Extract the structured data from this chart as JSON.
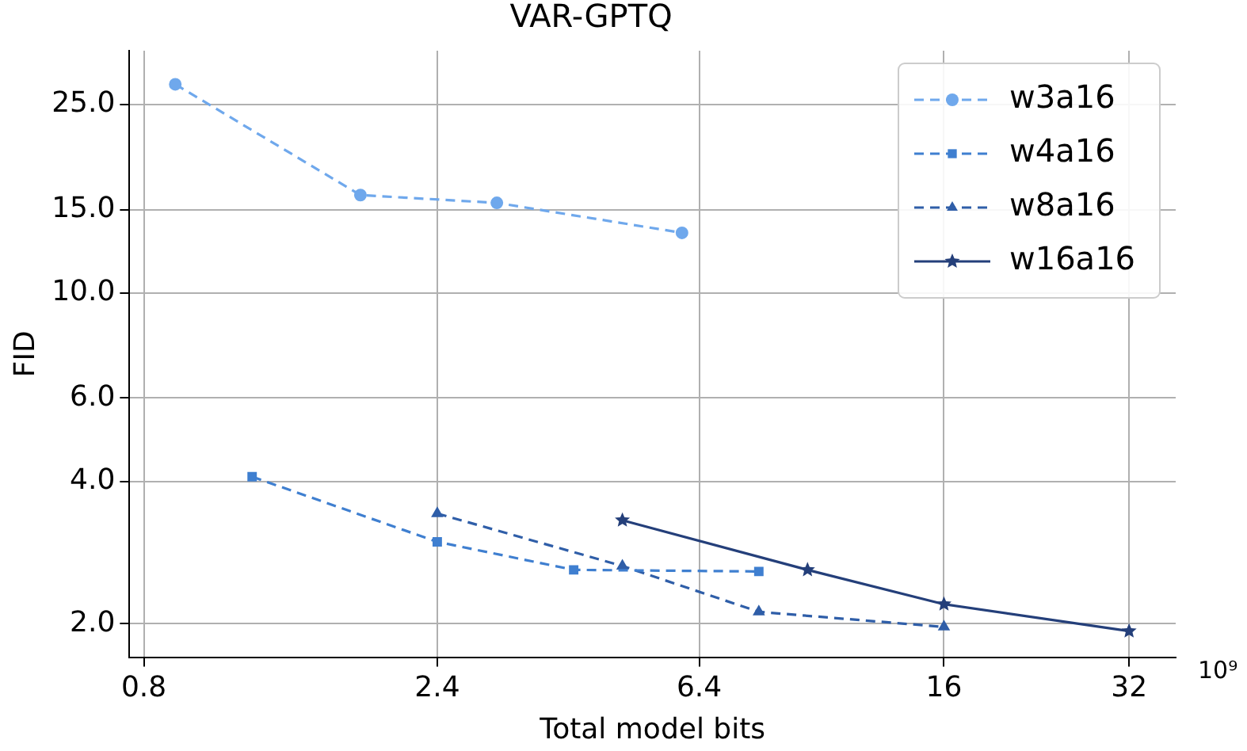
{
  "chart_data": {
    "type": "line",
    "title": "VAR-GPTQ",
    "xlabel": "Total model bits",
    "ylabel": "FID",
    "log": "xy",
    "grid": true,
    "legend": "top right",
    "xlim": [
      0.758,
      38.1
    ],
    "xticks": [
      0.8,
      2.4,
      6.4,
      16,
      32
    ],
    "ylim": [
      1.7,
      32.5
    ],
    "yticks": [
      {
        "value": 2,
        "label": "2.0"
      },
      {
        "value": 4,
        "label": "4.0"
      },
      {
        "value": 6,
        "label": "6.0"
      },
      {
        "value": 10,
        "label": "10.0"
      },
      {
        "value": 15,
        "label": "15.0"
      },
      {
        "value": 25,
        "label": "25.0"
      }
    ],
    "annotations": [
      "10⁹"
    ],
    "series": [
      {
        "name": "w3a16",
        "color": "#6fa8ec",
        "marker": "circle",
        "line_style": "dashed",
        "x": [
          0.9,
          1.8,
          3.0,
          6.0
        ],
        "values": [
          27.6,
          16.1,
          15.5,
          13.4
        ]
      },
      {
        "name": "w4a16",
        "color": "#3f7fd0",
        "marker": "square",
        "line_style": "dashed",
        "x": [
          1.2,
          2.4,
          4.0,
          8.0
        ],
        "values": [
          4.09,
          2.98,
          2.6,
          2.58
        ]
      },
      {
        "name": "w8a16",
        "color": "#2f5ea8",
        "marker": "triangle",
        "line_style": "dashed",
        "x": [
          2.4,
          4.8,
          8.0,
          16
        ],
        "values": [
          3.42,
          2.65,
          2.12,
          1.97
        ]
      },
      {
        "name": "w16a16",
        "color": "#243f7a",
        "marker": "star",
        "line_style": "solid",
        "x": [
          4.8,
          9.6,
          16,
          32
        ],
        "values": [
          3.31,
          2.6,
          2.2,
          1.93
        ]
      }
    ]
  }
}
